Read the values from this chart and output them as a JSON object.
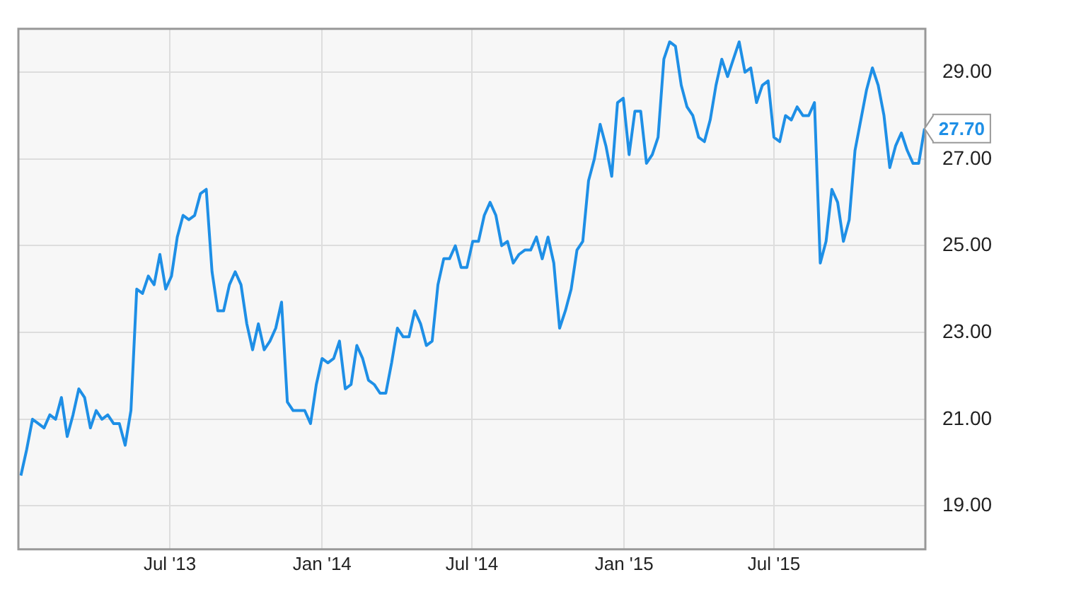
{
  "chart_data": {
    "type": "line",
    "x": [
      "2013-01-02",
      "2013-01-09",
      "2013-01-16",
      "2013-01-23",
      "2013-01-30",
      "2013-02-06",
      "2013-02-13",
      "2013-02-20",
      "2013-02-27",
      "2013-03-06",
      "2013-03-13",
      "2013-03-20",
      "2013-03-27",
      "2013-04-03",
      "2013-04-10",
      "2013-04-17",
      "2013-04-24",
      "2013-05-01",
      "2013-05-08",
      "2013-05-15",
      "2013-05-22",
      "2013-05-29",
      "2013-06-05",
      "2013-06-12",
      "2013-06-19",
      "2013-06-26",
      "2013-07-03",
      "2013-07-10",
      "2013-07-17",
      "2013-07-24",
      "2013-07-31",
      "2013-08-07",
      "2013-08-14",
      "2013-08-21",
      "2013-08-28",
      "2013-09-04",
      "2013-09-11",
      "2013-09-18",
      "2013-09-25",
      "2013-10-02",
      "2013-10-09",
      "2013-10-16",
      "2013-10-23",
      "2013-10-30",
      "2013-11-06",
      "2013-11-13",
      "2013-11-20",
      "2013-11-27",
      "2013-12-04",
      "2013-12-11",
      "2013-12-18",
      "2013-12-25",
      "2014-01-01",
      "2014-01-08",
      "2014-01-15",
      "2014-01-22",
      "2014-01-29",
      "2014-02-05",
      "2014-02-12",
      "2014-02-19",
      "2014-02-26",
      "2014-03-05",
      "2014-03-12",
      "2014-03-19",
      "2014-03-26",
      "2014-04-02",
      "2014-04-09",
      "2014-04-16",
      "2014-04-23",
      "2014-04-30",
      "2014-05-07",
      "2014-05-14",
      "2014-05-21",
      "2014-05-28",
      "2014-06-04",
      "2014-06-11",
      "2014-06-18",
      "2014-06-25",
      "2014-07-02",
      "2014-07-09",
      "2014-07-16",
      "2014-07-23",
      "2014-07-30",
      "2014-08-06",
      "2014-08-13",
      "2014-08-20",
      "2014-08-27",
      "2014-09-03",
      "2014-09-10",
      "2014-09-17",
      "2014-09-24",
      "2014-10-01",
      "2014-10-08",
      "2014-10-15",
      "2014-10-22",
      "2014-10-29",
      "2014-11-05",
      "2014-11-12",
      "2014-11-19",
      "2014-11-26",
      "2014-12-03",
      "2014-12-10",
      "2014-12-17",
      "2014-12-24",
      "2014-12-31",
      "2015-01-07",
      "2015-01-14",
      "2015-01-21",
      "2015-01-28",
      "2015-02-04",
      "2015-02-11",
      "2015-02-18",
      "2015-02-25",
      "2015-03-04",
      "2015-03-11",
      "2015-03-18",
      "2015-03-25",
      "2015-04-01",
      "2015-04-08",
      "2015-04-15",
      "2015-04-22",
      "2015-04-29",
      "2015-05-06",
      "2015-05-13",
      "2015-05-20",
      "2015-05-27",
      "2015-06-03",
      "2015-06-10",
      "2015-06-17",
      "2015-06-24",
      "2015-07-01",
      "2015-07-08",
      "2015-07-15",
      "2015-07-22",
      "2015-07-29",
      "2015-08-05",
      "2015-08-12",
      "2015-08-19",
      "2015-08-26",
      "2015-09-02",
      "2015-09-09",
      "2015-09-16",
      "2015-09-23",
      "2015-09-30",
      "2015-10-07",
      "2015-10-14",
      "2015-10-21",
      "2015-10-28",
      "2015-11-04",
      "2015-11-11",
      "2015-11-18",
      "2015-11-25",
      "2015-12-02",
      "2015-12-09",
      "2015-12-16",
      "2015-12-23",
      "2015-12-30"
    ],
    "series": [
      {
        "color": "#1e8fe6",
        "values": [
          19.7,
          20.3,
          21.0,
          20.9,
          20.8,
          21.1,
          21.0,
          21.5,
          20.6,
          21.1,
          21.7,
          21.5,
          20.8,
          21.2,
          21.0,
          21.1,
          20.9,
          20.9,
          20.4,
          21.2,
          24.0,
          23.9,
          24.3,
          24.1,
          24.8,
          24.0,
          24.3,
          25.2,
          25.7,
          25.6,
          25.7,
          26.2,
          26.3,
          24.4,
          23.5,
          23.5,
          24.1,
          24.4,
          24.1,
          23.2,
          22.6,
          23.2,
          22.6,
          22.8,
          23.1,
          23.7,
          21.4,
          21.2,
          21.2,
          21.2,
          20.9,
          21.8,
          22.4,
          22.3,
          22.4,
          22.8,
          21.7,
          21.8,
          22.7,
          22.4,
          21.9,
          21.8,
          21.6,
          21.6,
          22.3,
          23.1,
          22.9,
          22.9,
          23.5,
          23.2,
          22.7,
          22.8,
          24.1,
          24.7,
          24.7,
          25.0,
          24.5,
          24.5,
          25.1,
          25.1,
          25.7,
          26.0,
          25.7,
          25.0,
          25.1,
          24.6,
          24.8,
          24.9,
          24.9,
          25.2,
          24.7,
          25.2,
          24.6,
          23.1,
          23.5,
          24.0,
          24.9,
          25.1,
          26.5,
          27.0,
          27.8,
          27.3,
          26.6,
          28.3,
          28.4,
          27.1,
          28.1,
          28.1,
          26.9,
          27.1,
          27.5,
          29.3,
          29.7,
          29.6,
          28.7,
          28.2,
          28.0,
          27.5,
          27.4,
          27.9,
          28.7,
          29.3,
          28.9,
          29.3,
          29.7,
          29.0,
          29.1,
          28.3,
          28.7,
          28.8,
          27.5,
          27.4,
          28.0,
          27.9,
          28.2,
          28.0,
          28.0,
          28.3,
          24.6,
          25.1,
          26.3,
          26.0,
          25.1,
          25.6,
          27.2,
          27.9,
          28.6,
          29.1,
          28.7,
          28.0,
          26.8,
          27.3,
          27.6,
          27.2,
          26.9,
          26.9,
          27.7
        ]
      }
    ],
    "xlim": [
      "2012-12-30",
      "2015-12-31"
    ],
    "xticks": [
      {
        "value": "2013-07-01",
        "label": "Jul '13"
      },
      {
        "value": "2014-01-01",
        "label": "Jan '14"
      },
      {
        "value": "2014-07-01",
        "label": "Jul '14"
      },
      {
        "value": "2015-01-01",
        "label": "Jan '15"
      },
      {
        "value": "2015-07-01",
        "label": "Jul '15"
      }
    ],
    "ylim": [
      18,
      30
    ],
    "yticks": [
      {
        "value": 19,
        "label": "19.00"
      },
      {
        "value": 21,
        "label": "21.00"
      },
      {
        "value": 23,
        "label": "23.00"
      },
      {
        "value": 25,
        "label": "25.00"
      },
      {
        "value": 27,
        "label": "27.00"
      },
      {
        "value": 29,
        "label": "29.00"
      }
    ],
    "grid": true,
    "legend": false,
    "marker": "none",
    "line_style": "solid",
    "annotations": [
      {
        "text": "27.70",
        "x": "2015-12-30",
        "y": 27.7
      }
    ]
  }
}
